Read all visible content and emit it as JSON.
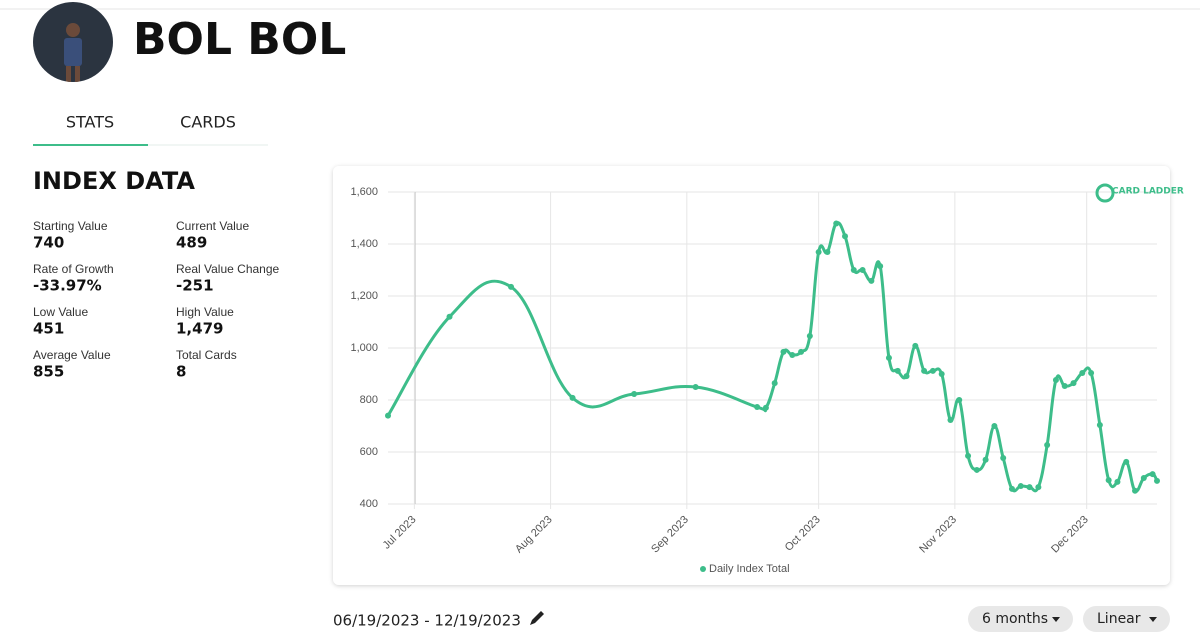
{
  "header": {
    "name": "BOL BOL"
  },
  "tabs": [
    "STATS",
    "CARDS"
  ],
  "index_data": {
    "title": "INDEX DATA",
    "stats": [
      {
        "label": "Starting Value",
        "value": "740"
      },
      {
        "label": "Current Value",
        "value": "489"
      },
      {
        "label": "Rate of Growth",
        "value": "-33.97%"
      },
      {
        "label": "Real Value Change",
        "value": "-251"
      },
      {
        "label": "Low Value",
        "value": "451"
      },
      {
        "label": "High Value",
        "value": "1,479"
      },
      {
        "label": "Average Value",
        "value": "855"
      },
      {
        "label": "Total Cards",
        "value": "8"
      }
    ]
  },
  "chart_data": {
    "type": "line",
    "logo": "CARD LADDER",
    "x": [
      -6,
      8,
      22,
      36,
      50,
      64,
      78,
      80,
      82,
      84,
      86,
      88,
      90,
      92,
      94,
      96,
      98,
      100,
      102,
      104,
      106,
      108,
      110,
      112,
      114,
      116,
      118,
      120,
      122,
      124,
      126,
      128,
      130,
      132,
      134,
      136,
      138,
      140,
      142,
      144,
      146,
      148,
      150,
      152,
      154,
      156,
      158,
      160,
      162,
      164,
      166,
      168,
      169
    ],
    "series": [
      {
        "name": "Daily Index Total",
        "color": "#3dbd8a",
        "values": [
          740,
          1120,
          1235,
          808,
          823,
          850,
          773,
          770,
          865,
          985,
          973,
          985,
          1046,
          1369,
          1369,
          1479,
          1430,
          1300,
          1300,
          1258,
          1315,
          962,
          912,
          892,
          1008,
          912,
          912,
          900,
          723,
          800,
          585,
          531,
          570,
          700,
          577,
          458,
          469,
          465,
          465,
          627,
          877,
          854,
          865,
          904,
          904,
          704,
          492,
          485,
          562,
          451,
          500,
          515,
          489
        ]
      }
    ],
    "xlim": [
      -6,
      169
    ],
    "xticks": [
      {
        "value": 0,
        "label": "Jul 2023"
      },
      {
        "value": 31,
        "label": "Aug 2023"
      },
      {
        "value": 62,
        "label": "Sep 2023"
      },
      {
        "value": 92,
        "label": "Oct 2023"
      },
      {
        "value": 123,
        "label": "Nov 2023"
      },
      {
        "value": 153,
        "label": "Dec 2023"
      }
    ],
    "ylim": [
      400,
      1600
    ],
    "yticks": [
      400,
      600,
      800,
      {
        "value": 1000,
        "label": "1,000"
      },
      {
        "value": 1200,
        "label": "1,200"
      },
      {
        "value": 1400,
        "label": "1,400"
      },
      {
        "value": 1600,
        "label": "1,600"
      }
    ],
    "grid": true,
    "legend": "bottom"
  },
  "controls": {
    "date_range": "06/19/2023 - 12/19/2023",
    "period": "6 months",
    "scale": "Linear"
  }
}
